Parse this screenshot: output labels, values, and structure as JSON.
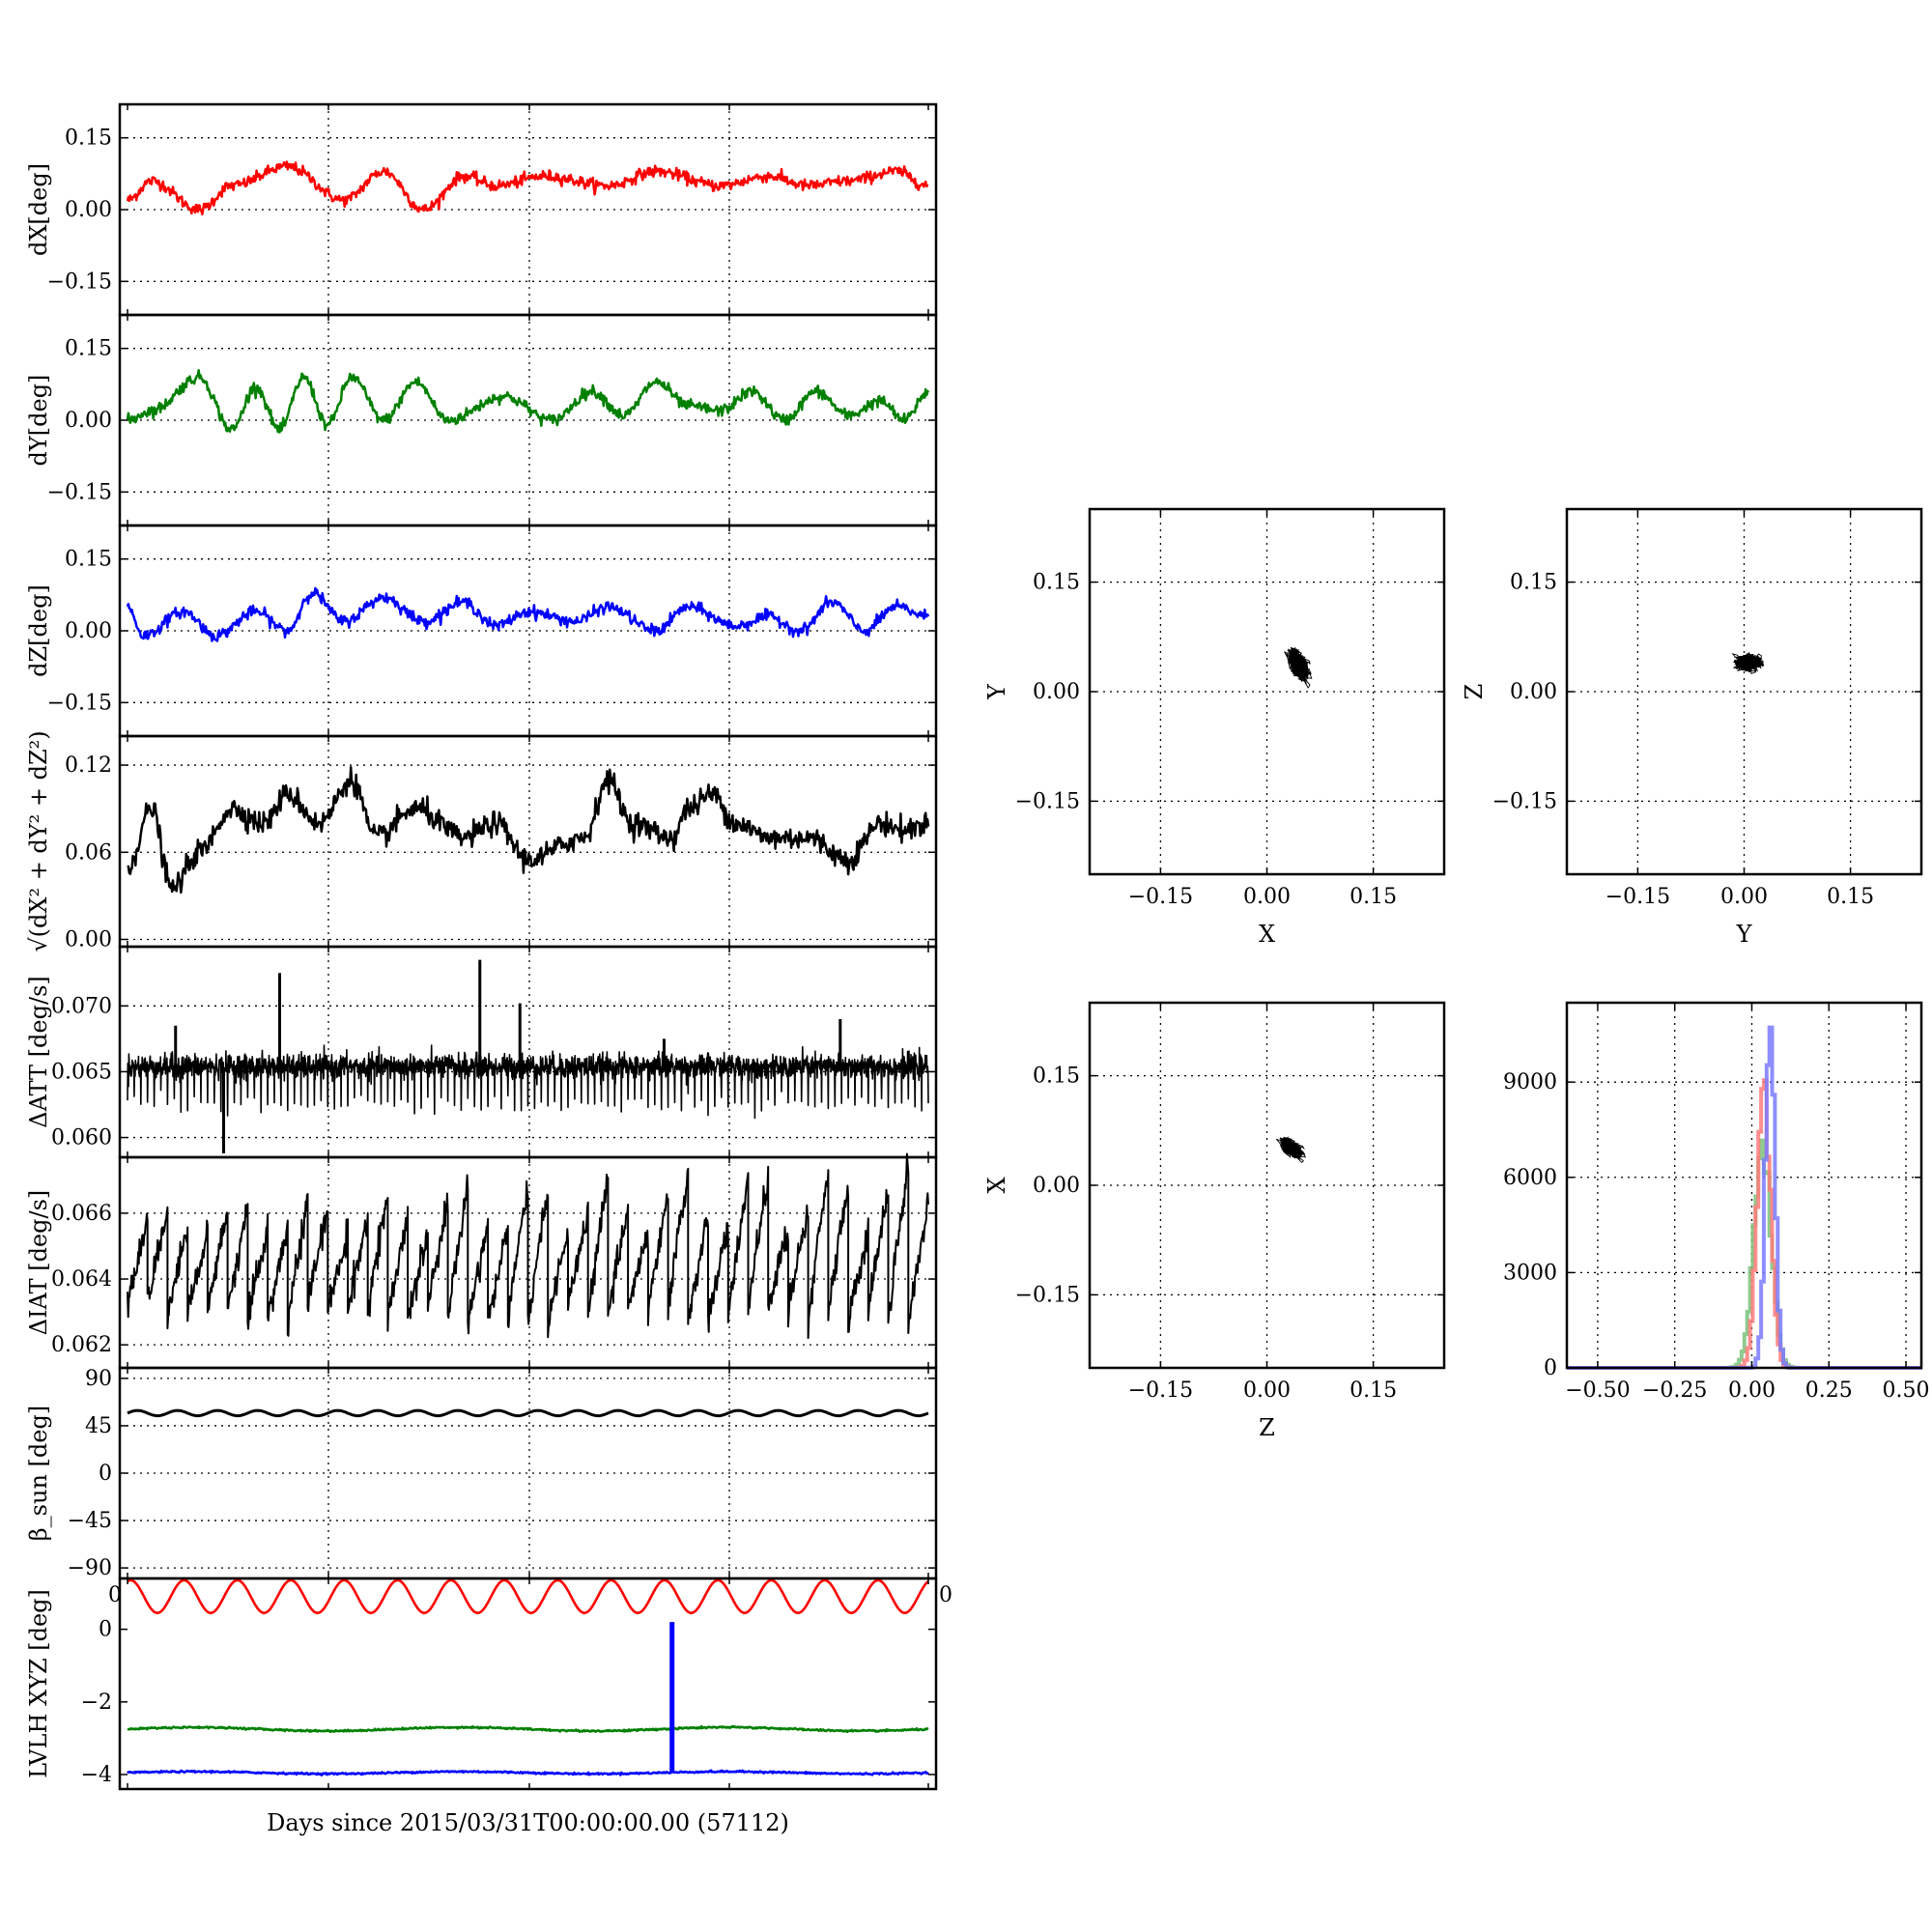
{
  "figure": {
    "xlabel": "Days since 2015/03/31T00:00:00.00 (57112)",
    "stray_tick_left": "0",
    "stray_tick_right": "0"
  },
  "colors": {
    "red": "#ff0000",
    "green": "#008000",
    "blue": "#0000ff",
    "black": "#000000",
    "grid": "#000000",
    "hist_blue": "#7a7aff",
    "hist_red": "#ff7a7a",
    "hist_green": "#7ac27a"
  },
  "chart_data": [
    {
      "type": "line",
      "id": "dX",
      "ylabel": "dX[deg]",
      "ylim": [
        -0.22,
        0.22
      ],
      "yticks": [
        0.15,
        0.0,
        -0.15
      ],
      "ytick_labels": [
        "0.15",
        "0.00",
        "−0.15"
      ],
      "grid": true,
      "color": "red",
      "noise": 0.006,
      "linewidth": 2.5,
      "series": [
        {
          "x": [
            0,
            0.03,
            0.09,
            0.13,
            0.2,
            0.27,
            0.32,
            0.37,
            0.42,
            0.46,
            0.52,
            0.6,
            0.66,
            0.74,
            0.8,
            0.85,
            0.9,
            0.96,
            1.0
          ],
          "y": [
            0.02,
            0.06,
            0.0,
            0.05,
            0.09,
            0.02,
            0.08,
            0.0,
            0.07,
            0.05,
            0.07,
            0.05,
            0.08,
            0.05,
            0.07,
            0.05,
            0.06,
            0.08,
            0.05
          ]
        }
      ]
    },
    {
      "type": "line",
      "id": "dY",
      "ylabel": "dY[deg]",
      "ylim": [
        -0.22,
        0.22
      ],
      "yticks": [
        0.15,
        0.0,
        -0.15
      ],
      "ytick_labels": [
        "0.15",
        "0.00",
        "−0.15"
      ],
      "grid": true,
      "color": "green",
      "noise": 0.006,
      "linewidth": 2.5,
      "series": [
        {
          "x": [
            0,
            0.03,
            0.09,
            0.13,
            0.16,
            0.19,
            0.22,
            0.25,
            0.28,
            0.32,
            0.36,
            0.4,
            0.47,
            0.53,
            0.58,
            0.62,
            0.66,
            0.7,
            0.74,
            0.78,
            0.82,
            0.86,
            0.9,
            0.94,
            0.97,
            1.0
          ],
          "y": [
            0.0,
            0.02,
            0.09,
            -0.02,
            0.07,
            -0.02,
            0.09,
            -0.01,
            0.09,
            0.0,
            0.08,
            0.0,
            0.05,
            0.0,
            0.06,
            0.01,
            0.08,
            0.03,
            0.02,
            0.06,
            0.0,
            0.06,
            0.01,
            0.04,
            0.0,
            0.06
          ]
        }
      ]
    },
    {
      "type": "line",
      "id": "dZ",
      "ylabel": "dZ[deg]",
      "ylim": [
        -0.22,
        0.22
      ],
      "yticks": [
        0.15,
        0.0,
        -0.15
      ],
      "ytick_labels": [
        "0.15",
        "0.00",
        "−0.15"
      ],
      "grid": true,
      "color": "blue",
      "noise": 0.006,
      "linewidth": 2.5,
      "series": [
        {
          "x": [
            0,
            0.02,
            0.07,
            0.11,
            0.16,
            0.2,
            0.23,
            0.27,
            0.32,
            0.37,
            0.42,
            0.46,
            0.5,
            0.56,
            0.6,
            0.66,
            0.7,
            0.76,
            0.8,
            0.84,
            0.88,
            0.92,
            0.96,
            1.0
          ],
          "y": [
            0.05,
            -0.01,
            0.04,
            -0.01,
            0.04,
            0.0,
            0.08,
            0.02,
            0.07,
            0.02,
            0.06,
            0.01,
            0.04,
            0.02,
            0.05,
            0.0,
            0.05,
            0.01,
            0.03,
            0.0,
            0.06,
            0.0,
            0.05,
            0.03
          ]
        }
      ]
    },
    {
      "type": "line",
      "id": "dR",
      "ylabel": "√(dX² + dY² + dZ²)",
      "ylim": [
        -0.005,
        0.14
      ],
      "yticks": [
        0.12,
        0.06,
        0.0
      ],
      "ytick_labels": [
        "0.12",
        "0.06",
        "0.00"
      ],
      "grid": true,
      "color": "black",
      "noise": 0.004,
      "linewidth": 2.5,
      "series": [
        {
          "x": [
            0,
            0.03,
            0.055,
            0.09,
            0.13,
            0.17,
            0.2,
            0.24,
            0.28,
            0.31,
            0.36,
            0.42,
            0.46,
            0.5,
            0.57,
            0.6,
            0.63,
            0.68,
            0.7,
            0.73,
            0.76,
            0.8,
            0.85,
            0.9,
            0.94,
            0.97,
            1.0
          ],
          "y": [
            0.05,
            0.09,
            0.035,
            0.06,
            0.09,
            0.08,
            0.1,
            0.08,
            0.11,
            0.07,
            0.09,
            0.07,
            0.08,
            0.055,
            0.07,
            0.11,
            0.08,
            0.07,
            0.09,
            0.1,
            0.08,
            0.07,
            0.07,
            0.055,
            0.08,
            0.075,
            0.08
          ]
        }
      ]
    },
    {
      "type": "line",
      "id": "dATT",
      "ylabel": "ΔATT [deg/s]",
      "ylim": [
        0.0585,
        0.0745
      ],
      "yticks": [
        0.07,
        0.065,
        0.06
      ],
      "ytick_labels": [
        "0.070",
        "0.065",
        "0.060"
      ],
      "grid": true,
      "color": "black",
      "pattern": "comb",
      "baseline": 0.065,
      "dip": 0.0625,
      "dips": 120,
      "spikes": [
        {
          "x": 0.06,
          "y": 0.0685
        },
        {
          "x": 0.12,
          "y": 0.0588
        },
        {
          "x": 0.19,
          "y": 0.0725
        },
        {
          "x": 0.44,
          "y": 0.0735
        },
        {
          "x": 0.49,
          "y": 0.0702
        },
        {
          "x": 0.67,
          "y": 0.0675
        },
        {
          "x": 0.89,
          "y": 0.069
        }
      ]
    },
    {
      "type": "line",
      "id": "dIAT",
      "ylabel": "ΔIAT [deg/s]",
      "ylim": [
        0.0613,
        0.0677
      ],
      "yticks": [
        0.066,
        0.064,
        0.062
      ],
      "ytick_labels": [
        "0.066",
        "0.064",
        "0.062"
      ],
      "grid": true,
      "color": "black",
      "pattern": "sawtooth",
      "base": 0.0635,
      "teeth": 40,
      "amp_min": 0.0653,
      "amp_max": 0.0672
    },
    {
      "type": "line",
      "id": "beta",
      "ylabel": "β_sun [deg]",
      "ylim": [
        -100,
        100
      ],
      "yticks": [
        90,
        45,
        0,
        -45,
        -90
      ],
      "ytick_labels": [
        "90",
        "45",
        "0",
        "−45",
        "−90"
      ],
      "grid": true,
      "color": "black",
      "pattern": "wave",
      "mean": 57,
      "amp": 2.5,
      "cycles": 20
    },
    {
      "type": "line",
      "id": "lvlh",
      "ylabel": "LVLH XYZ [deg]",
      "ylim": [
        -4.4,
        1.4
      ],
      "yticks": [
        0,
        -2,
        -4
      ],
      "ytick_labels": [
        "0",
        "−2",
        "−4"
      ],
      "grid": false,
      "series": [
        {
          "color": "red",
          "pattern": "wave",
          "mean": 0.9,
          "amp": 0.45,
          "cycles": 15
        },
        {
          "color": "green",
          "pattern": "flat",
          "mean": -2.75,
          "amp": 0.05
        },
        {
          "color": "blue",
          "pattern": "flat",
          "mean": -3.95,
          "amp": 0.03
        }
      ],
      "spike": {
        "x": 0.68,
        "y0": -3.95,
        "y1": 0.2,
        "color": "blue"
      }
    },
    {
      "type": "scatter",
      "id": "XY",
      "xlabel": "X",
      "ylabel": "Y",
      "xlim": [
        -0.25,
        0.25
      ],
      "ylim": [
        -0.25,
        0.25
      ],
      "xticks": [
        -0.15,
        0.0,
        0.15
      ],
      "xtick_labels": [
        "−0.15",
        "0.00",
        "0.15"
      ],
      "yticks": [
        0.15,
        0.0,
        -0.15
      ],
      "ytick_labels": [
        "0.15",
        "0.00",
        "−0.15"
      ],
      "grid": true,
      "color": "black",
      "cloud": {
        "cx": 0.045,
        "cy": 0.035,
        "sx": 0.016,
        "sy": 0.024,
        "rho": -0.5,
        "n": 2500
      }
    },
    {
      "type": "scatter",
      "id": "YZ",
      "xlabel": "Y",
      "ylabel": "Z",
      "xlim": [
        -0.25,
        0.25
      ],
      "ylim": [
        -0.25,
        0.25
      ],
      "xticks": [
        -0.15,
        0.0,
        0.15
      ],
      "xtick_labels": [
        "−0.15",
        "0.00",
        "0.15"
      ],
      "yticks": [
        0.15,
        0.0,
        -0.15
      ],
      "ytick_labels": [
        "0.15",
        "0.00",
        "−0.15"
      ],
      "grid": true,
      "color": "black",
      "cloud": {
        "cx": 0.005,
        "cy": 0.04,
        "sx": 0.022,
        "sy": 0.012,
        "rho": 0.0,
        "n": 2500
      }
    },
    {
      "type": "scatter",
      "id": "ZX",
      "xlabel": "Z",
      "ylabel": "X",
      "xlim": [
        -0.25,
        0.25
      ],
      "ylim": [
        -0.25,
        0.25
      ],
      "xticks": [
        -0.15,
        0.0,
        0.15
      ],
      "xtick_labels": [
        "−0.15",
        "0.00",
        "0.15"
      ],
      "yticks": [
        0.15,
        0.0,
        -0.15
      ],
      "ytick_labels": [
        "0.15",
        "0.00",
        "−0.15"
      ],
      "grid": true,
      "color": "black",
      "cloud": {
        "cx": 0.035,
        "cy": 0.05,
        "sx": 0.017,
        "sy": 0.015,
        "rho": -0.55,
        "n": 2500
      }
    },
    {
      "type": "histogram",
      "id": "hist",
      "xlim": [
        -0.6,
        0.55
      ],
      "ylim": [
        0,
        11500
      ],
      "xticks": [
        -0.5,
        -0.25,
        0.0,
        0.25,
        0.5
      ],
      "xtick_labels": [
        "−0.50",
        "−0.25",
        "0.00",
        "0.25",
        "0.50"
      ],
      "yticks": [
        9000,
        6000,
        3000,
        0
      ],
      "ytick_labels": [
        "9000",
        "6000",
        "3000",
        "0"
      ],
      "grid": true,
      "series": [
        {
          "color": "hist_green",
          "mean": 0.03,
          "sd": 0.028,
          "peak": 7000
        },
        {
          "color": "hist_red",
          "mean": 0.035,
          "sd": 0.022,
          "peak": 8500
        },
        {
          "color": "hist_blue",
          "mean": 0.055,
          "sd": 0.016,
          "peak": 10200
        }
      ]
    }
  ]
}
